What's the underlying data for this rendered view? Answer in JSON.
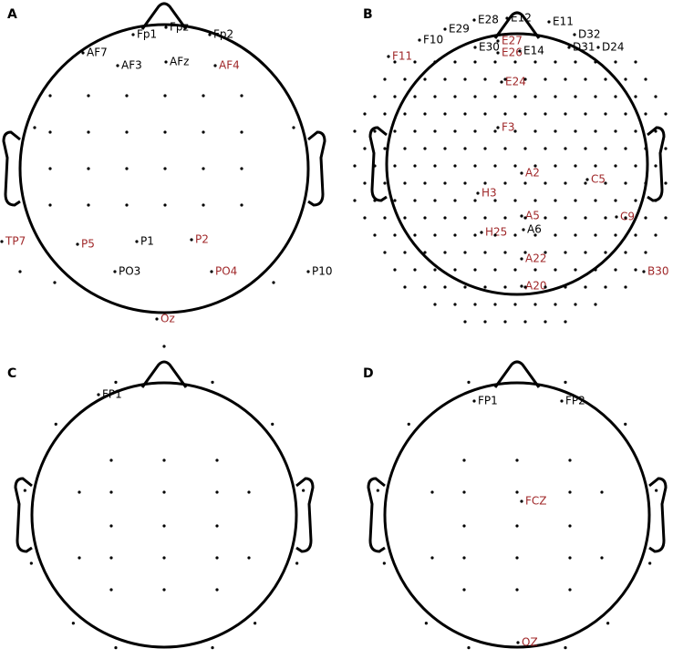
{
  "panels": [
    {
      "letter": "A",
      "electrodes": [
        "Fp1",
        "Fpz",
        "Fp2",
        "AF7",
        "AF3",
        "AFz",
        "AF4",
        "TP7",
        "P5",
        "P1",
        "P2",
        "PO3",
        "PO4",
        "P10",
        "Oz"
      ]
    },
    {
      "letter": "B",
      "electrodes": [
        "E12",
        "E28",
        "E29",
        "E11",
        "F10",
        "E27",
        "E26",
        "E30",
        "E14",
        "D32",
        "D31",
        "D24",
        "F11",
        "E24",
        "F3",
        "A2",
        "C5",
        "H3",
        "C9",
        "A5",
        "A6",
        "H25",
        "A22",
        "B30",
        "A20"
      ]
    },
    {
      "letter": "C",
      "electrodes": [
        "FP1"
      ]
    },
    {
      "letter": "D",
      "electrodes": [
        "FP1",
        "FP2",
        "FCZ",
        "OZ"
      ]
    }
  ]
}
